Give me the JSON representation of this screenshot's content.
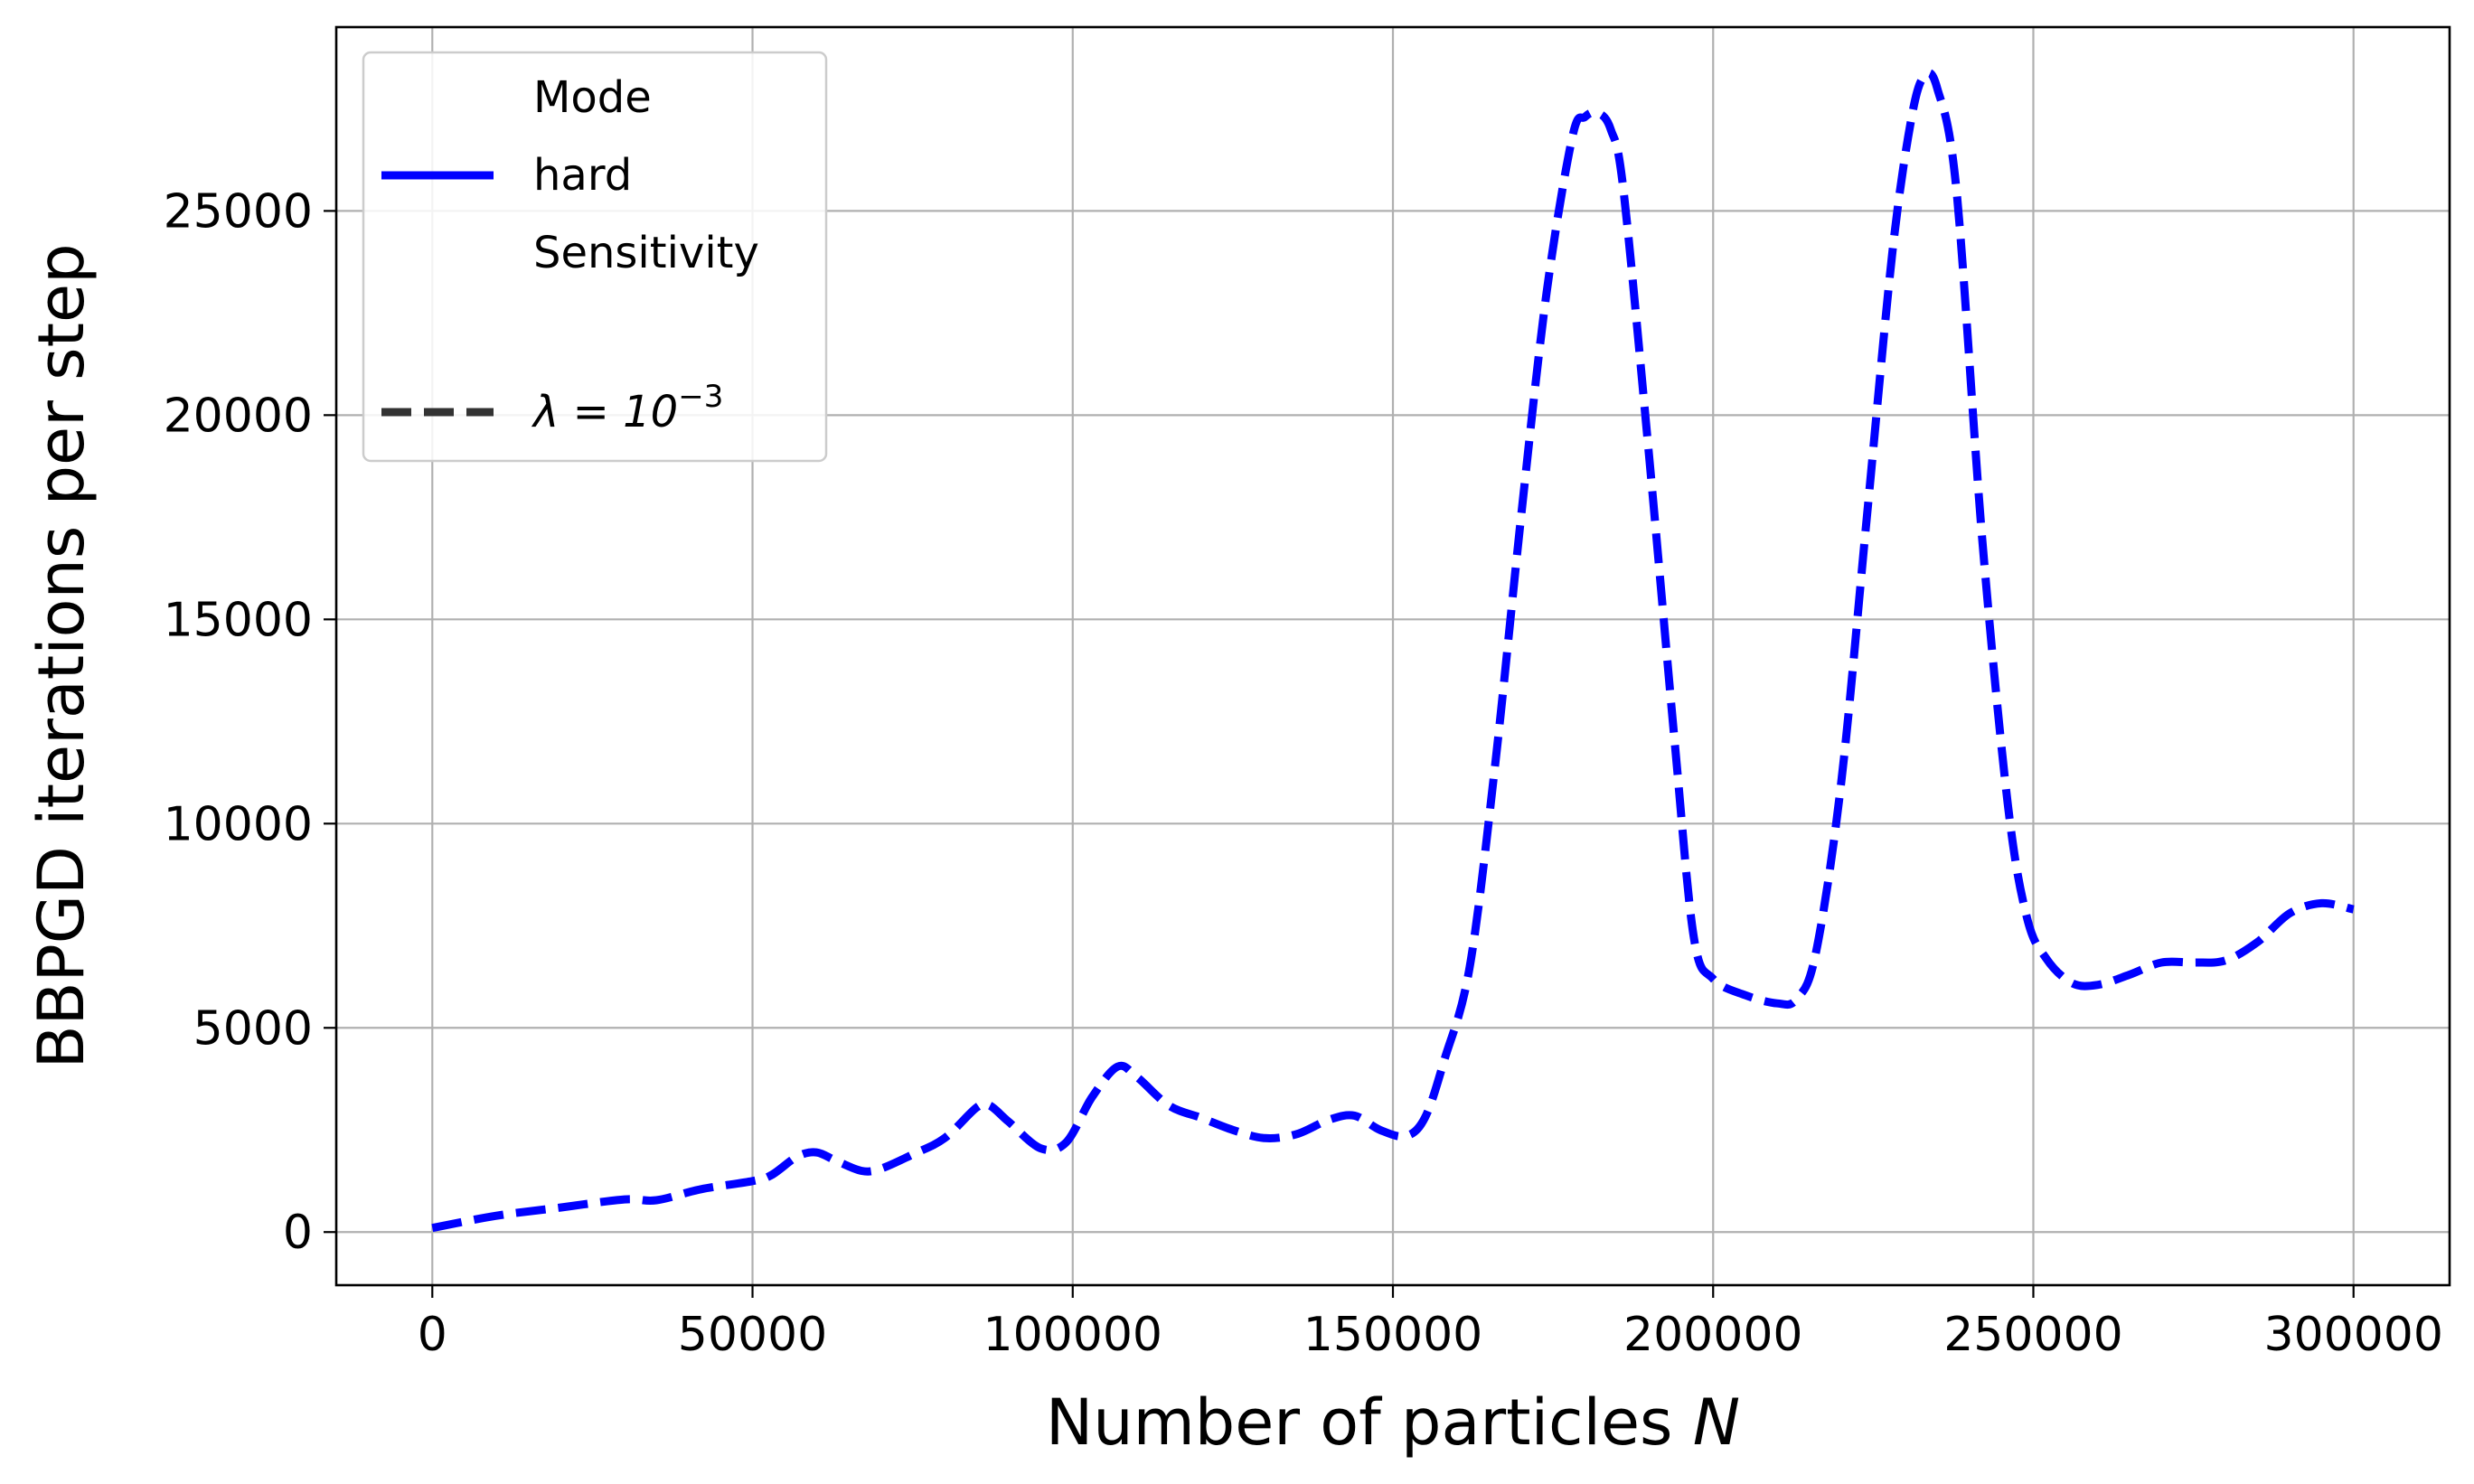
{
  "chart_data": {
    "type": "line",
    "title": "",
    "xlabel": "Number of particles",
    "xlabel_var": "N",
    "ylabel": "BBPGD iterations per step",
    "xlim": [
      -15000,
      315000
    ],
    "ylim": [
      -1300,
      29500
    ],
    "xticks": [
      0,
      50000,
      100000,
      150000,
      200000,
      250000,
      300000
    ],
    "yticks": [
      0,
      5000,
      10000,
      15000,
      20000,
      25000
    ],
    "grid": true,
    "legend": {
      "placement": "top-left",
      "entries": [
        {
          "label": "Mode",
          "kind": "header"
        },
        {
          "label": "hard",
          "kind": "line",
          "color": "#0000ff",
          "linestyle": "solid"
        },
        {
          "label": "Sensitivity",
          "kind": "header"
        },
        {
          "label": "",
          "kind": "spacer"
        },
        {
          "label": "λ = 10",
          "exponent": "−3",
          "kind": "line",
          "color": "#333333",
          "linestyle": "dashed"
        }
      ]
    },
    "series": [
      {
        "name": "hard, λ = 10^−3",
        "color": "#0000ff",
        "linestyle": "dashed",
        "x": [
          0,
          10000,
          20000,
          30000,
          35000,
          42000,
          50000,
          53000,
          57000,
          60000,
          63000,
          67000,
          70000,
          75000,
          80000,
          85000,
          87000,
          90000,
          95000,
          99000,
          103000,
          107000,
          110000,
          115000,
          120000,
          125000,
          130000,
          135000,
          140000,
          144000,
          148000,
          152000,
          155000,
          158000,
          162000,
          166000,
          170000,
          174000,
          178000,
          180000,
          182000,
          184000,
          186000,
          190000,
          194000,
          197000,
          200000,
          205000,
          210000,
          213000,
          216000,
          220000,
          224000,
          228000,
          231000,
          233000,
          235000,
          238000,
          242000,
          246000,
          249000,
          252000,
          256000,
          260000,
          265000,
          270000,
          275000,
          280000,
          285000,
          290000,
          295000,
          300000
        ],
        "y": [
          100,
          400,
          600,
          800,
          780,
          1050,
          1250,
          1400,
          1850,
          1950,
          1750,
          1500,
          1550,
          1900,
          2300,
          3050,
          3100,
          2700,
          2050,
          2200,
          3300,
          4050,
          3800,
          3100,
          2800,
          2500,
          2300,
          2400,
          2750,
          2850,
          2500,
          2350,
          2800,
          4200,
          6500,
          11500,
          17500,
          23000,
          26800,
          27300,
          27400,
          27000,
          25500,
          19000,
          12000,
          7200,
          6200,
          5800,
          5600,
          5700,
          6800,
          11000,
          17500,
          24000,
          27300,
          28300,
          28000,
          25500,
          17000,
          10500,
          7700,
          6700,
          6100,
          6050,
          6300,
          6600,
          6600,
          6650,
          7100,
          7800,
          8050,
          7900
        ]
      }
    ]
  }
}
